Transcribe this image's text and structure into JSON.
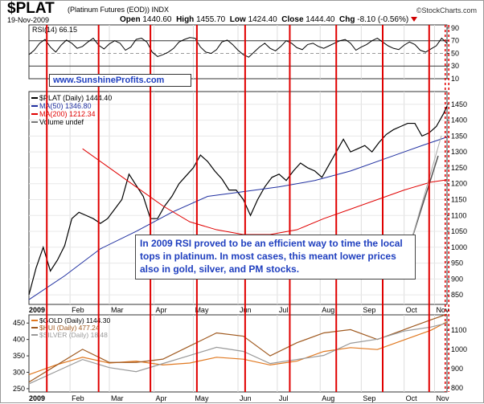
{
  "header": {
    "symbol": "$PLAT",
    "name": "(Platinum Futures (EOD))",
    "exchange": "INDX",
    "date": "19-Nov-2009",
    "open_label": "Open",
    "open": "1440.60",
    "high_label": "High",
    "high": "1455.70",
    "low_label": "Low",
    "low": "1424.40",
    "close_label": "Close",
    "close": "1444.40",
    "chg_label": "Chg",
    "chg": "-8.10 (-0.56%)",
    "brand": "©StockCharts.com"
  },
  "watermark": "www.SunshineProfits.com",
  "annotation": "In 2009 RSI proved to be an efficient way to time the local tops in platinum. In most cases, this meant lower prices also in gold, silver, and PM stocks.",
  "colors": {
    "price": "#000000",
    "ma50": "#1f2fa0",
    "ma200": "#e00000",
    "red_line": "#e00000",
    "gold": "#e07820",
    "hui": "#a05a20",
    "silver": "#999999",
    "text_blue": "#1f3fbf"
  },
  "chart_data": [
    {
      "type": "line",
      "panel": "RSI",
      "title": "RSI(14) 66.15",
      "ylim": [
        10,
        95
      ],
      "yticks": [
        10,
        30,
        50,
        70,
        90
      ],
      "reference_lines": [
        30,
        70
      ],
      "series": [
        {
          "name": "RSI(14)",
          "color": "#000000",
          "x": [
            0,
            3,
            6,
            9,
            12,
            15,
            18,
            21,
            24,
            27,
            30,
            33,
            36,
            39,
            42,
            45,
            48,
            51,
            54,
            57,
            60,
            63,
            66,
            69,
            72,
            75,
            78,
            81,
            84,
            87,
            90,
            93,
            96,
            99,
            102,
            105,
            108,
            111,
            114,
            117,
            120,
            123,
            126,
            129,
            132,
            135,
            138,
            141,
            144,
            147,
            150,
            153,
            156,
            159,
            162,
            165,
            168,
            171,
            174,
            177,
            180,
            183,
            186,
            189,
            192,
            195,
            198,
            201,
            204,
            207,
            210,
            213,
            216,
            219,
            222,
            225,
            228,
            231,
            234
          ],
          "values": [
            48,
            55,
            66,
            72,
            60,
            52,
            63,
            71,
            66,
            58,
            61,
            68,
            74,
            63,
            57,
            65,
            70,
            66,
            55,
            60,
            72,
            74,
            68,
            52,
            45,
            48,
            52,
            58,
            68,
            72,
            75,
            74,
            60,
            52,
            50,
            56,
            68,
            71,
            64,
            55,
            48,
            44,
            52,
            60,
            66,
            58,
            54,
            61,
            70,
            66,
            59,
            56,
            64,
            66,
            61,
            58,
            62,
            66,
            70,
            72,
            66,
            55,
            60,
            64,
            70,
            74,
            68,
            62,
            58,
            56,
            63,
            68,
            64,
            55,
            52,
            57,
            62,
            74,
            66
          ]
        }
      ],
      "xlabels": [
        "2009",
        "Feb",
        "Mar",
        "Apr",
        "May",
        "Jun",
        "Jul",
        "Aug",
        "Sep",
        "Oct",
        "Nov"
      ]
    },
    {
      "type": "line",
      "panel": "Price",
      "title": "$PLAT (Daily) 1444.40",
      "ylim": [
        820,
        1490
      ],
      "yticks": [
        850,
        900,
        950,
        1000,
        1050,
        1100,
        1150,
        1200,
        1250,
        1300,
        1350,
        1400,
        1450
      ],
      "legend": [
        "$PLAT (Daily) 1444.40",
        "MA(50) 1346.80",
        "MA(200) 1212.34",
        "Volume undef"
      ],
      "series": [
        {
          "name": "$PLAT (Daily)",
          "color": "#000000",
          "x": [
            0,
            4,
            8,
            12,
            16,
            20,
            24,
            28,
            32,
            36,
            40,
            44,
            48,
            52,
            56,
            60,
            64,
            68,
            72,
            76,
            80,
            84,
            88,
            92,
            96,
            100,
            104,
            108,
            112,
            116,
            120,
            124,
            128,
            132,
            136,
            140,
            144,
            148,
            152,
            156,
            160,
            164,
            168,
            172,
            176,
            180,
            184,
            188,
            192,
            196,
            200,
            204,
            208,
            212,
            216,
            220,
            224,
            228,
            232,
            234
          ],
          "values": [
            850,
            935,
            1000,
            925,
            960,
            1005,
            1090,
            1110,
            1100,
            1090,
            1075,
            1090,
            1120,
            1150,
            1230,
            1195,
            1160,
            1090,
            1090,
            1130,
            1160,
            1200,
            1225,
            1250,
            1290,
            1270,
            1240,
            1215,
            1180,
            1180,
            1150,
            1100,
            1150,
            1190,
            1220,
            1230,
            1210,
            1240,
            1265,
            1250,
            1240,
            1220,
            1260,
            1300,
            1340,
            1300,
            1310,
            1320,
            1300,
            1330,
            1355,
            1370,
            1380,
            1390,
            1390,
            1350,
            1360,
            1380,
            1420,
            1444
          ]
        },
        {
          "name": "MA(50)",
          "color": "#1f2fa0",
          "x": [
            0,
            20,
            40,
            60,
            80,
            100,
            120,
            140,
            160,
            180,
            200,
            220,
            234
          ],
          "values": [
            835,
            910,
            995,
            1050,
            1110,
            1160,
            1175,
            1190,
            1210,
            1240,
            1280,
            1320,
            1346.8
          ]
        },
        {
          "name": "MA(200)",
          "color": "#e00000",
          "x": [
            30,
            45,
            60,
            75,
            90,
            105,
            120,
            135,
            150,
            165,
            180,
            195,
            210,
            225,
            234
          ],
          "values": [
            1310,
            1250,
            1190,
            1130,
            1080,
            1055,
            1040,
            1040,
            1055,
            1090,
            1120,
            1150,
            1180,
            1205,
            1212.34
          ]
        }
      ],
      "xlabels": [
        "2009",
        "Feb",
        "Mar",
        "Apr",
        "May",
        "Jun",
        "Jul",
        "Aug",
        "Sep",
        "Oct",
        "Nov"
      ]
    },
    {
      "type": "line",
      "panel": "Comparison",
      "legend": [
        "$GOLD (Daily) 1144.30",
        "$HUI (Daily) 477.24",
        "$SILVER (Daily) 18.48"
      ],
      "left_yticks": [
        250,
        300,
        350,
        400,
        450
      ],
      "right_yticks": [
        800,
        900,
        1000,
        1100
      ],
      "series": [
        {
          "name": "$GOLD (Daily)",
          "color": "#e07820",
          "x": [
            0,
            15,
            30,
            45,
            60,
            75,
            90,
            105,
            120,
            135,
            150,
            165,
            180,
            195,
            210,
            225,
            234
          ],
          "values": [
            870,
            920,
            960,
            930,
            940,
            920,
            930,
            960,
            950,
            920,
            940,
            990,
            1010,
            1000,
            1050,
            1100,
            1144
          ]
        },
        {
          "name": "$HUI (Daily)",
          "color": "#a05a20",
          "x": [
            0,
            15,
            30,
            45,
            60,
            75,
            90,
            105,
            120,
            135,
            150,
            165,
            180,
            195,
            210,
            225,
            234
          ],
          "values": [
            270,
            320,
            370,
            330,
            330,
            340,
            380,
            420,
            410,
            350,
            390,
            420,
            430,
            400,
            430,
            460,
            477
          ]
        },
        {
          "name": "$SILVER (Daily)",
          "color": "#999999",
          "x": [
            0,
            15,
            30,
            45,
            60,
            75,
            90,
            105,
            120,
            135,
            150,
            165,
            180,
            195,
            210,
            225,
            234
          ],
          "values": [
            11,
            12.5,
            14,
            13,
            12.5,
            13.5,
            14.5,
            15.5,
            15,
            13.5,
            14,
            14.5,
            16,
            16.5,
            17.5,
            18,
            18.48
          ]
        }
      ],
      "xlabels": [
        "2009",
        "Feb",
        "Mar",
        "Apr",
        "May",
        "Jun",
        "Jul",
        "Aug",
        "Sep",
        "Oct",
        "Nov"
      ]
    }
  ],
  "markers": {
    "solid_lines_x": [
      10,
      39,
      68,
      94,
      121,
      146,
      172,
      198,
      224
    ],
    "dashed_lines_x": [
      233,
      235
    ]
  }
}
